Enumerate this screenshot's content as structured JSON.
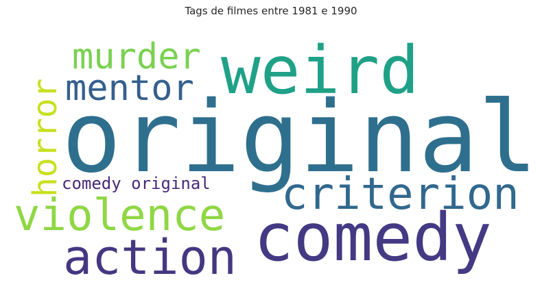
{
  "title": "Tags de filmes entre 1981 e 1990",
  "words": [
    {
      "id": "original",
      "text": "original",
      "color": "#2f6f8e"
    },
    {
      "id": "weird",
      "text": "weird",
      "color": "#1fa187"
    },
    {
      "id": "comedy",
      "text": "comedy",
      "color": "#443983"
    },
    {
      "id": "criterion",
      "text": "criterion",
      "color": "#31688e"
    },
    {
      "id": "action",
      "text": "action",
      "color": "#453781"
    },
    {
      "id": "violence",
      "text": "violence",
      "color": "#8fd744"
    },
    {
      "id": "murder",
      "text": "murder",
      "color": "#7ad151"
    },
    {
      "id": "mentor",
      "text": "mentor",
      "color": "#355f8d"
    },
    {
      "id": "horror",
      "text": "horror",
      "color": "#c8e020"
    },
    {
      "id": "comedy-original",
      "text": "comedy original",
      "color": "#482878"
    }
  ]
}
